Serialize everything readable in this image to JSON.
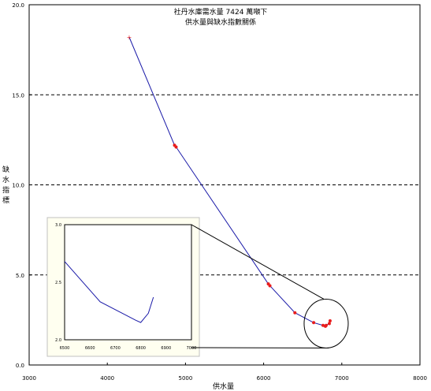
{
  "chart_data": {
    "type": "line",
    "title": "社丹水庫需水量 7424 萬噸下",
    "subtitle": "供水量與缺水指數關係",
    "xlabel": "供水量",
    "ylabel_chars": [
      "缺",
      "水",
      "指",
      "標"
    ],
    "xlim": [
      3000,
      8000
    ],
    "ylim": [
      0,
      20
    ],
    "x_ticks": [
      "3000",
      "4000",
      "5000",
      "6000",
      "7000",
      "8000"
    ],
    "y_ticks": [
      "0.0",
      "5.0",
      "10.0",
      "15.0",
      "20.0"
    ],
    "grid": "dashed horizontal lines at 5, 10, 15",
    "line_color": "#1a1aa8",
    "marker_color": "#e81c1c",
    "series": [
      {
        "x": [
          4280,
          4860,
          4880,
          6060,
          6080,
          6400,
          6640,
          6760,
          6790,
          6800,
          6840,
          6850
        ],
        "y": [
          18.2,
          12.2,
          12.1,
          4.5,
          4.4,
          2.9,
          2.35,
          2.2,
          2.15,
          2.2,
          2.3,
          2.45
        ]
      }
    ],
    "inset": {
      "xlim": [
        6500,
        7000
      ],
      "ylim": [
        2.0,
        3.0
      ],
      "x_ticks": [
        "6500",
        "6600",
        "6700",
        "6800",
        "6900",
        "7000"
      ],
      "y_ticks": [
        "2.0",
        "2.5",
        "3.0"
      ],
      "series_x": [
        6500,
        6640,
        6780,
        6800,
        6830,
        6850
      ],
      "series_y": [
        2.68,
        2.33,
        2.17,
        2.15,
        2.23,
        2.37
      ]
    }
  }
}
